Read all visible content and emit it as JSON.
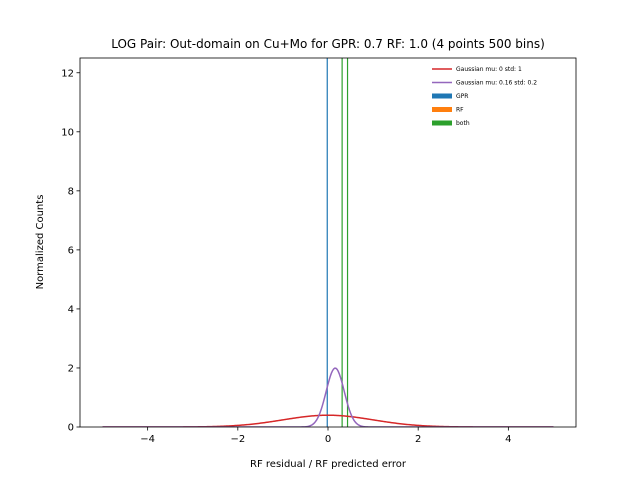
{
  "chart_data": {
    "type": "histogram",
    "title": "LOG Pair: Out-domain on Cu+Mo for GPR: 0.7 RF: 1.0 (4 points 500 bins)",
    "xlabel": "RF residual / RF predicted error",
    "ylabel": "Normalized Counts",
    "xlim": [
      -5.5,
      5.5
    ],
    "ylim": [
      0,
      12.5
    ],
    "xticks": [
      -4,
      -2,
      0,
      2,
      4
    ],
    "yticks": [
      0,
      2,
      4,
      6,
      8,
      10,
      12
    ],
    "grid": false,
    "legend_position": "top-right",
    "gaussians": [
      {
        "name": "Gaussian mu: 0 std: 1",
        "mu": 0,
        "std": 1,
        "color": "#d62728",
        "range": [
          -5,
          5
        ]
      },
      {
        "name": "Gaussian mu: 0.16 std: 0.2",
        "mu": 0.16,
        "std": 0.2,
        "color": "#9467bd",
        "range": [
          -5,
          5
        ]
      }
    ],
    "histograms": [
      {
        "name": "GPR",
        "color": "#1f77b4",
        "bars": [
          {
            "x": -0.03,
            "width": 0.022,
            "height": 45.5
          }
        ]
      },
      {
        "name": "RF",
        "color": "#ff7f0e",
        "bars": []
      },
      {
        "name": "both",
        "color": "#2ca02c",
        "bars": [
          {
            "x": 0.3,
            "width": 0.022,
            "height": 45.5
          },
          {
            "x": 0.42,
            "width": 0.022,
            "height": 45.5
          }
        ]
      }
    ]
  }
}
